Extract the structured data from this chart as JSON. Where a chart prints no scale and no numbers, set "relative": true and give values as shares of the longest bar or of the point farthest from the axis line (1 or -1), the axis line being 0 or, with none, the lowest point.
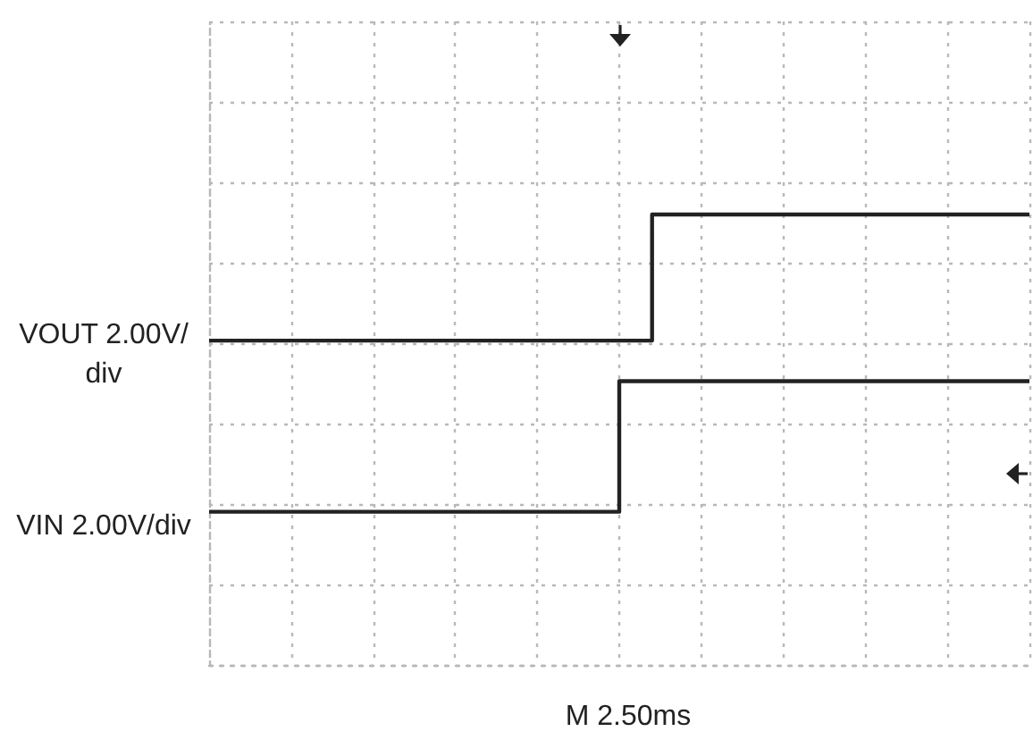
{
  "chart_data": {
    "type": "step",
    "relative": true,
    "xlabel": "M 2.50ms",
    "categories": [
      null,
      null,
      null,
      null,
      null,
      null,
      null,
      null,
      null,
      null,
      null,
      null,
      null,
      null,
      null,
      null,
      null,
      null,
      null,
      null,
      null,
      null,
      null,
      null,
      null,
      null,
      null,
      null,
      null,
      null,
      null,
      null,
      null,
      null,
      null,
      null,
      null,
      null,
      null,
      null,
      null,
      null,
      null,
      null,
      null,
      null,
      null,
      null,
      null,
      null,
      null
    ],
    "series": [
      {
        "name": "VOUT 2.00V/div",
        "color": "#222222",
        "values": [
          0.72,
          0.72,
          0.72,
          0.72,
          0.72,
          0.72,
          0.72,
          0.72,
          0.72,
          0.72,
          0.72,
          0.72,
          0.72,
          0.72,
          0.72,
          0.72,
          0.72,
          0.72,
          0.72,
          0.72,
          0.72,
          0.72,
          0.72,
          0.72,
          0.72,
          0.72,
          0.72,
          1,
          1,
          1,
          1,
          1,
          1,
          1,
          1,
          1,
          1,
          1,
          1,
          1,
          1,
          1,
          1,
          1,
          1,
          1,
          1,
          1,
          1,
          1,
          1
        ]
      },
      {
        "name": "VIN 2.00V/div",
        "color": "#222222",
        "values": [
          0.34,
          0.34,
          0.34,
          0.34,
          0.34,
          0.34,
          0.34,
          0.34,
          0.34,
          0.34,
          0.34,
          0.34,
          0.34,
          0.34,
          0.34,
          0.34,
          0.34,
          0.34,
          0.34,
          0.34,
          0.34,
          0.34,
          0.34,
          0.34,
          0.34,
          0.63,
          0.63,
          0.63,
          0.63,
          0.63,
          0.63,
          0.63,
          0.63,
          0.63,
          0.63,
          0.63,
          0.63,
          0.63,
          0.63,
          0.63,
          0.63,
          0.63,
          0.63,
          0.63,
          0.63,
          0.63,
          0.63,
          0.63,
          0.63,
          0.63,
          0.63
        ]
      }
    ],
    "grid": true,
    "marker": "none",
    "line_style": "solid",
    "tick_labels": false
  }
}
